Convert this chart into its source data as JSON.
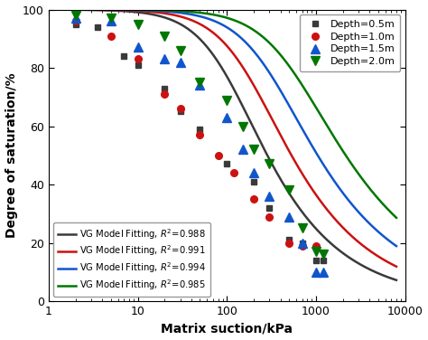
{
  "xlim": [
    1,
    10000
  ],
  "ylim": [
    0,
    100
  ],
  "xlabel": "Matrix suction/kPa",
  "ylabel": "Degree of saturation/%",
  "series": [
    {
      "label": "Depth=0.5m",
      "color": "#3a3a3a",
      "marker": "s",
      "vg_alpha": 0.012,
      "vg_n": 1.38,
      "vg_m": 0.275,
      "data_x": [
        2.0,
        3.5,
        7.0,
        10.0,
        20.0,
        30.0,
        50.0,
        100.0,
        200.0,
        300.0,
        500.0,
        700.0,
        1000.0,
        1200.0
      ],
      "data_y": [
        95,
        94,
        84,
        81,
        73,
        65,
        59,
        47,
        41,
        32,
        21,
        20,
        14,
        14
      ]
    },
    {
      "label": "Depth=1.0m",
      "color": "#cc1111",
      "marker": "o",
      "vg_alpha": 0.007,
      "vg_n": 1.35,
      "vg_m": 0.259,
      "data_x": [
        2.0,
        5.0,
        10.0,
        20.0,
        30.0,
        50.0,
        80.0,
        120.0,
        200.0,
        300.0,
        500.0,
        700.0,
        1000.0
      ],
      "data_y": [
        96,
        91,
        83,
        71,
        66,
        57,
        50,
        44,
        35,
        29,
        20,
        19,
        19
      ]
    },
    {
      "label": "Depth=1.5m",
      "color": "#1155cc",
      "marker": "^",
      "vg_alpha": 0.004,
      "vg_n": 1.3,
      "vg_m": 0.231,
      "data_x": [
        2.0,
        5.0,
        10.0,
        20.0,
        30.0,
        50.0,
        100.0,
        150.0,
        200.0,
        300.0,
        500.0,
        700.0,
        1000.0,
        1200.0
      ],
      "data_y": [
        97,
        96,
        87,
        83,
        82,
        74,
        63,
        52,
        44,
        36,
        29,
        20,
        10,
        10
      ]
    },
    {
      "label": "Depth=2.0m",
      "color": "#007700",
      "marker": "v",
      "vg_alpha": 0.0025,
      "vg_n": 1.28,
      "vg_m": 0.219,
      "data_x": [
        2.0,
        5.0,
        10.0,
        20.0,
        30.0,
        50.0,
        100.0,
        150.0,
        200.0,
        300.0,
        500.0,
        700.0,
        1000.0,
        1200.0
      ],
      "data_y": [
        98,
        97,
        95,
        91,
        86,
        75,
        69,
        60,
        52,
        47,
        38,
        25,
        17,
        16
      ]
    }
  ],
  "legend_markers": [
    {
      "label": "Depth=0.5m",
      "color": "#3a3a3a",
      "marker": "s"
    },
    {
      "label": "Depth=1.0m",
      "color": "#cc1111",
      "marker": "o"
    },
    {
      "label": "Depth=1.5m",
      "color": "#1155cc",
      "marker": "^"
    },
    {
      "label": "Depth=2.0m",
      "color": "#007700",
      "marker": "v"
    }
  ],
  "legend_lines": [
    {
      "label": "VG Model Fitting, $R^2$=0.988",
      "color": "#3a3a3a"
    },
    {
      "label": "VG Model Fitting, $R^2$=0.991",
      "color": "#cc1111"
    },
    {
      "label": "VG Model Fitting, $R^2$=0.994",
      "color": "#1155cc"
    },
    {
      "label": "VG Model Fitting, $R^2$=0.985",
      "color": "#007700"
    }
  ]
}
